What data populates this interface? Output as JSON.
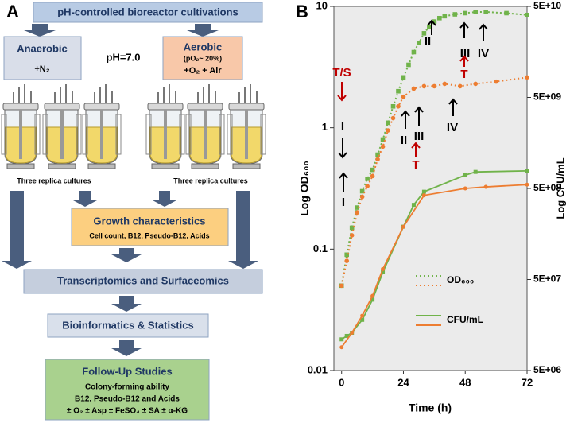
{
  "panel_a": {
    "label": "A",
    "title": "pH-controlled bioreactor cultivations",
    "anaerobic": {
      "title": "Anaerobic",
      "gas": "+N₂"
    },
    "aerobic": {
      "title": "Aerobic",
      "po2": "(pO₂~ 20%)",
      "gas": "+O₂ + Air"
    },
    "ph": "pH=7.0",
    "replicas": [
      "Three replica cultures",
      "Three replica cultures"
    ],
    "growth": {
      "title": "Growth characteristics",
      "detail": "Cell count, B12, Pseudo-B12, Acids"
    },
    "transcriptomics": "Transcriptomics and Surfaceomics",
    "bioinformatics": "Bioinformatics & Statistics",
    "follow_up": {
      "title": "Follow-Up Studies",
      "lines": [
        "Colony-forming ability",
        "B12, Pseudo-B12 and Acids",
        "± O₂ ± Asp ± FeSO₄ ± SA ± α-KG"
      ]
    }
  },
  "chart_data": {
    "type": "line",
    "panel": "B",
    "x_label": "Time (h)",
    "y_label": "Log OD₆₀₀",
    "y2_label": "Log CFU/mL",
    "xlim": [
      -3,
      72
    ],
    "xticks": [
      0,
      24,
      48,
      72
    ],
    "ylim": [
      0.01,
      10
    ],
    "yticks": [
      0.01,
      0.1,
      1,
      10
    ],
    "yscale": "log",
    "y2lim": [
      5000000,
      50000000000
    ],
    "y2scale": "log",
    "y2ticks": [
      {
        "value": 5000000,
        "label": "5E+06"
      },
      {
        "value": 50000000,
        "label": "5E+07"
      },
      {
        "value": 500000000,
        "label": "5E+08"
      },
      {
        "value": 5000000000,
        "label": "5E+09"
      },
      {
        "value": 50000000000,
        "label": "5E+10"
      }
    ],
    "legend": [
      {
        "label": "OD₆₀₀",
        "style": "dotted",
        "series": [
          0,
          1
        ]
      },
      {
        "label": "CFU/mL",
        "style": "solid",
        "series": [
          2,
          3
        ]
      }
    ],
    "series": [
      {
        "color": "#70b34a",
        "style": "dotted",
        "marker": "square",
        "axis": "y",
        "x": [
          0,
          2,
          4,
          6,
          8,
          10,
          12,
          14,
          16,
          18,
          20,
          22,
          24,
          26,
          28,
          30,
          32,
          34,
          36,
          38,
          40,
          44,
          48,
          52,
          56,
          64,
          72
        ],
        "values": [
          0.05,
          0.09,
          0.15,
          0.22,
          0.3,
          0.38,
          0.45,
          0.6,
          0.8,
          1.1,
          1.5,
          2.0,
          2.6,
          3.3,
          4.2,
          5.0,
          6.0,
          6.8,
          7.5,
          8.0,
          8.3,
          8.6,
          8.8,
          9.0,
          9.0,
          8.8,
          8.5
        ]
      },
      {
        "color": "#ed7d31",
        "style": "dotted",
        "marker": "circle",
        "axis": "y",
        "x": [
          0,
          2,
          4,
          6,
          8,
          10,
          12,
          14,
          16,
          18,
          20,
          22,
          24,
          28,
          32,
          36,
          40,
          46,
          52,
          60,
          72
        ],
        "values": [
          0.05,
          0.08,
          0.13,
          0.2,
          0.27,
          0.33,
          0.4,
          0.55,
          0.7,
          0.95,
          1.2,
          1.5,
          1.8,
          2.1,
          2.2,
          2.2,
          2.3,
          2.2,
          2.3,
          2.4,
          2.6
        ]
      },
      {
        "color": "#70b34a",
        "style": "solid",
        "marker": "square",
        "axis": "y2",
        "x": [
          0,
          2,
          4,
          8,
          12,
          16,
          24,
          28,
          32,
          48,
          52,
          72
        ],
        "values": [
          11000000,
          12000000,
          13000000,
          18000000,
          30000000,
          60000000,
          190000000,
          330000000,
          460000000,
          700000000,
          760000000,
          780000000
        ]
      },
      {
        "color": "#ed7d31",
        "style": "solid",
        "marker": "circle",
        "axis": "y2",
        "x": [
          0,
          4,
          8,
          12,
          16,
          24,
          32,
          48,
          56,
          72
        ],
        "values": [
          9000000,
          13000000,
          20000000,
          33000000,
          65000000,
          190000000,
          420000000,
          500000000,
          520000000,
          550000000
        ]
      }
    ],
    "annotations": [
      {
        "text": "T/S",
        "color": "#c00000"
      },
      {
        "text": "I",
        "color": "#000000"
      },
      {
        "text": "I",
        "color": "#000000"
      },
      {
        "text": "II",
        "color": "#000000"
      },
      {
        "text": "III",
        "color": "#000000"
      },
      {
        "text": "T",
        "color": "#c00000"
      },
      {
        "text": "II",
        "color": "#000000"
      },
      {
        "text": "IV",
        "color": "#000000"
      },
      {
        "text": "III",
        "color": "#000000"
      },
      {
        "text": "T",
        "color": "#c00000"
      },
      {
        "text": "IV",
        "color": "#000000"
      }
    ]
  }
}
